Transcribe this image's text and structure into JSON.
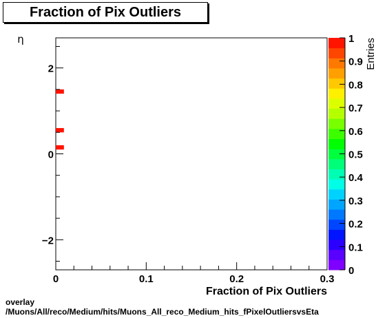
{
  "chart_data": {
    "type": "heatmap",
    "title": "Fraction of Pix Outliers",
    "xlabel": "Fraction of Pix Outliers",
    "ylabel": "η",
    "zlabel": "Entries",
    "xlim": [
      0,
      0.3
    ],
    "ylim": [
      -2.7,
      2.7
    ],
    "zlim": [
      0,
      1
    ],
    "x_ticks": [
      {
        "value": 0,
        "label": "0"
      },
      {
        "value": 0.1,
        "label": "0.1"
      },
      {
        "value": 0.2,
        "label": "0.2"
      },
      {
        "value": 0.3,
        "label": "0.3"
      }
    ],
    "y_ticks": [
      {
        "value": -2,
        "label": "−2"
      },
      {
        "value": 0,
        "label": "0"
      },
      {
        "value": 2,
        "label": "2"
      }
    ],
    "z_ticks": [
      {
        "value": 0,
        "label": "0"
      },
      {
        "value": 0.1,
        "label": "0.1"
      },
      {
        "value": 0.2,
        "label": "0.2"
      },
      {
        "value": 0.3,
        "label": "0.3"
      },
      {
        "value": 0.4,
        "label": "0.4"
      },
      {
        "value": 0.5,
        "label": "0.5"
      },
      {
        "value": 0.6,
        "label": "0.6"
      },
      {
        "value": 0.7,
        "label": "0.7"
      },
      {
        "value": 0.8,
        "label": "0.8"
      },
      {
        "value": 0.9,
        "label": "0.9"
      },
      {
        "value": 1,
        "label": "1"
      }
    ],
    "cells": [
      {
        "x0": 0.0,
        "x1": 0.009,
        "y0": 1.4,
        "y1": 1.5,
        "z": 1
      },
      {
        "x0": 0.0,
        "x1": 0.009,
        "y0": 0.5,
        "y1": 0.6,
        "z": 1
      },
      {
        "x0": 0.0,
        "x1": 0.009,
        "y0": 0.1,
        "y1": 0.2,
        "z": 1
      }
    ],
    "palette": [
      "#7f00ff",
      "#5a00ff",
      "#2c00ff",
      "#0014ff",
      "#0046ff",
      "#0078ff",
      "#00a5ff",
      "#00d2ff",
      "#00ffe6",
      "#00ffb4",
      "#00ff78",
      "#00ff3c",
      "#00ff00",
      "#3cff00",
      "#78ff00",
      "#b4ff00",
      "#dcff00",
      "#fff000",
      "#ffc800",
      "#ffa000",
      "#ff7800",
      "#ff4600",
      "#ff1400"
    ]
  },
  "footer": {
    "line1": "overlay",
    "line2": "/Muons/All/reco/Medium/hits/Muons_All_reco_Medium_hits_fPixelOutliersvsEta"
  }
}
